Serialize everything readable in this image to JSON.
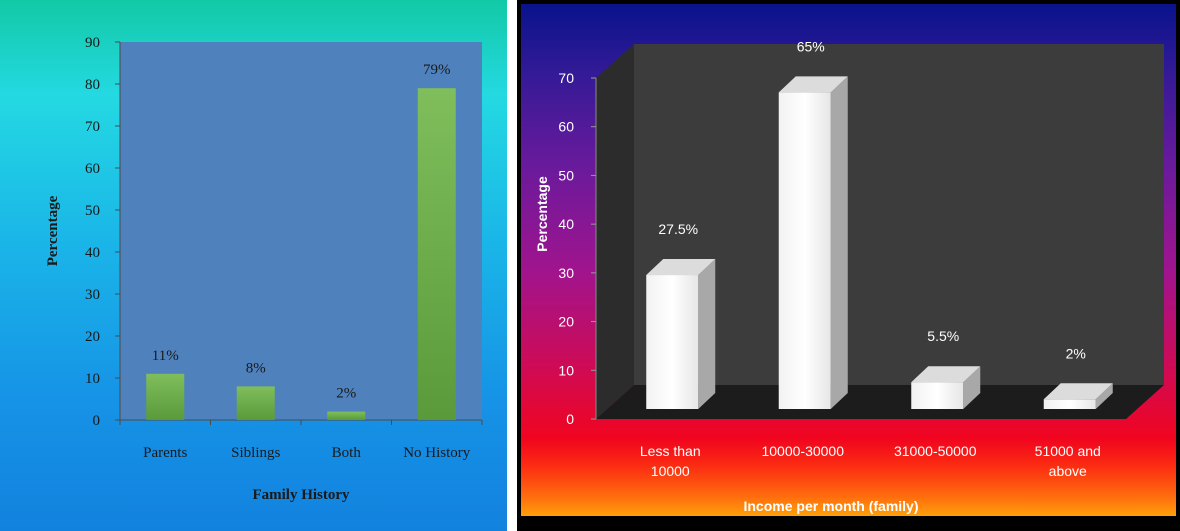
{
  "chart_data": [
    {
      "type": "bar",
      "xlabel": "Family History",
      "ylabel": "Percentage",
      "categories": [
        "Parents",
        "Siblings",
        "Both",
        "No History"
      ],
      "values": [
        11,
        8,
        2,
        79
      ],
      "data_labels": [
        "11%",
        "8%",
        "2%",
        "79%"
      ],
      "ylim": [
        0,
        90
      ],
      "yticks": [
        "0",
        "10",
        "20",
        "30",
        "40",
        "50",
        "60",
        "70",
        "80",
        "90"
      ],
      "grid": false,
      "legend": "none",
      "colors": {
        "bar": "#6cad4a",
        "plot_area": "#4f81bd"
      }
    },
    {
      "type": "bar",
      "style": "3d",
      "xlabel": "Income per month (family)",
      "ylabel": "Percentage",
      "categories": [
        [
          "Less than",
          "10000"
        ],
        [
          "10000-30000"
        ],
        [
          "31000-50000"
        ],
        [
          "51000 and",
          "above"
        ]
      ],
      "values": [
        27.5,
        65,
        5.5,
        2
      ],
      "data_labels": [
        "27.5%",
        "65%",
        "5.5%",
        "2%"
      ],
      "ylim": [
        0,
        70
      ],
      "yticks": [
        "0",
        "10",
        "20",
        "30",
        "40",
        "50",
        "60",
        "70"
      ],
      "grid": false,
      "legend": "none",
      "colors": {
        "bar": "#ffffff",
        "plot_area": "#3a3a3a"
      }
    }
  ]
}
